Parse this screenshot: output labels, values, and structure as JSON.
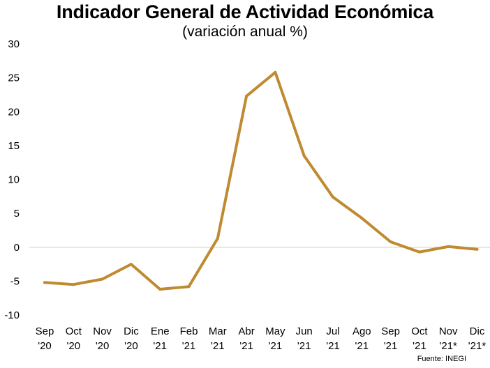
{
  "chart_data": {
    "type": "line",
    "title": "Indicador General de Actividad Económica",
    "subtitle": "(variación anual %)",
    "source": "Fuente: INEGI",
    "categories": [
      [
        "Sep",
        "'20"
      ],
      [
        "Oct",
        "'20"
      ],
      [
        "Nov",
        "'20"
      ],
      [
        "Dic",
        "'20"
      ],
      [
        "Ene",
        "'21"
      ],
      [
        "Feb",
        "'21"
      ],
      [
        "Mar",
        "'21"
      ],
      [
        "Abr",
        "'21"
      ],
      [
        "May",
        "'21"
      ],
      [
        "Jun",
        "'21"
      ],
      [
        "Jul",
        "'21"
      ],
      [
        "Ago",
        "'21"
      ],
      [
        "Sep",
        "'21"
      ],
      [
        "Oct",
        "'21"
      ],
      [
        "Nov",
        "'21*"
      ],
      [
        "Dic",
        "'21*"
      ]
    ],
    "series": [
      {
        "values": [
          -5.2,
          -5.5,
          -4.7,
          -2.5,
          -6.2,
          -5.8,
          1.3,
          22.3,
          25.8,
          13.5,
          7.4,
          4.3,
          0.8,
          -0.7,
          0.1,
          -0.3
        ],
        "color": "#bf8a30"
      }
    ],
    "ylim": [
      -10,
      30
    ],
    "yticks": [
      -10,
      -5,
      0,
      5,
      10,
      15,
      20,
      25,
      30
    ],
    "grid": false,
    "zero_line_color": "#d9c9a3"
  }
}
